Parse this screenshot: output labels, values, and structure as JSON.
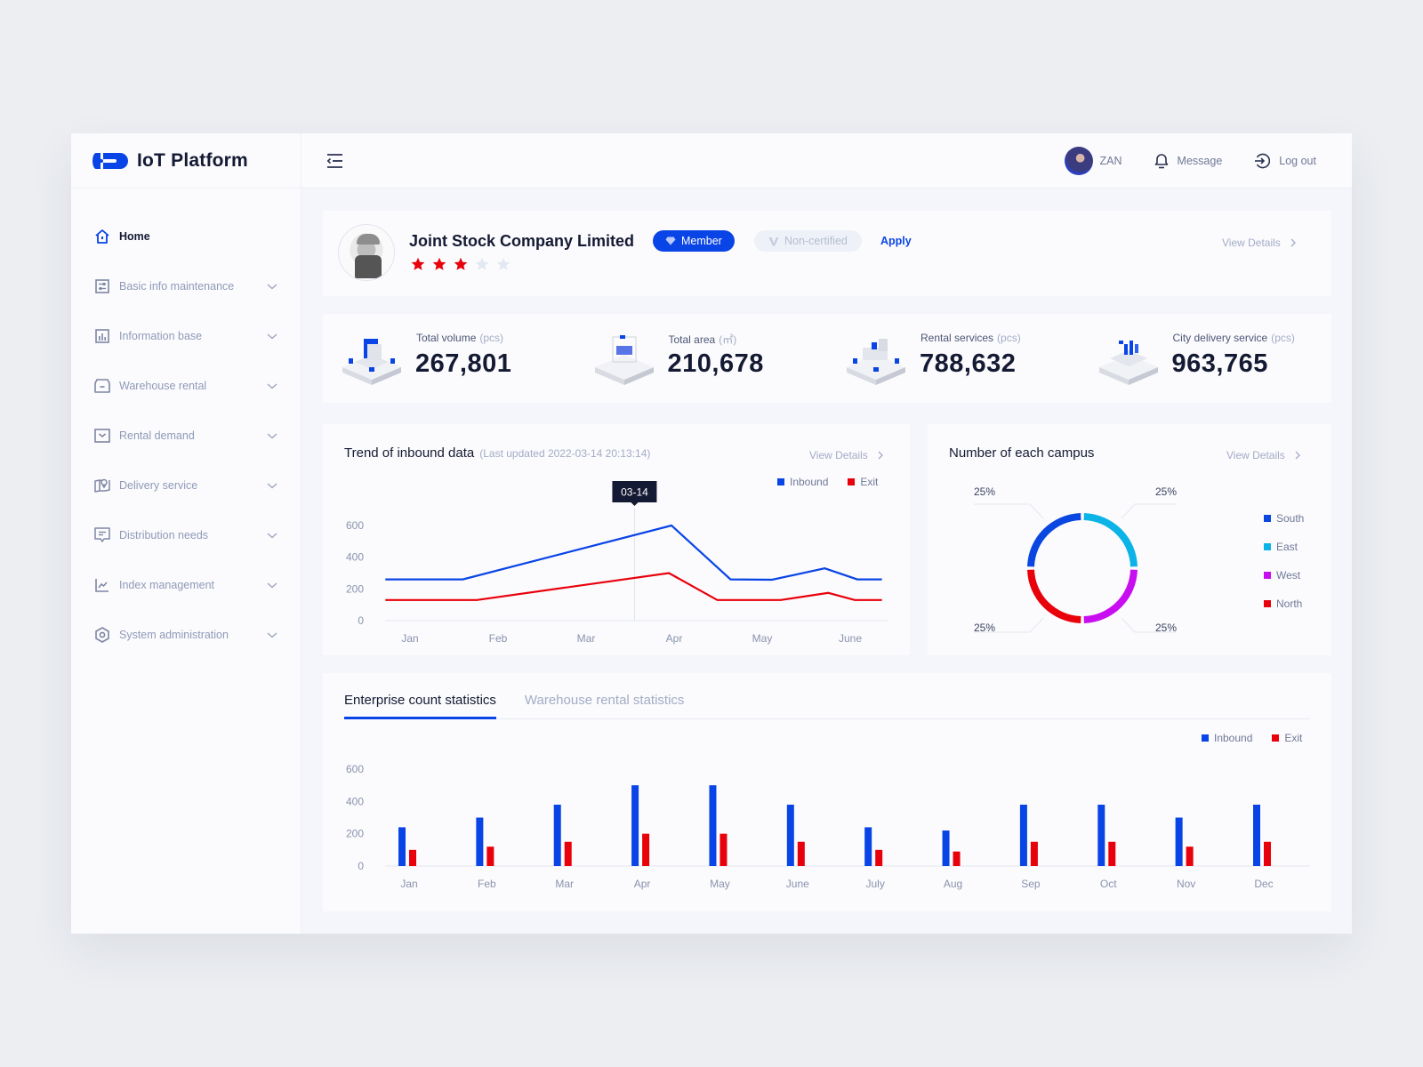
{
  "app": {
    "title": "IoT Platform"
  },
  "sidebar": {
    "items": [
      {
        "label": "Home",
        "icon": "home-icon",
        "active": true
      },
      {
        "label": "Basic info maintenance",
        "icon": "sliders-icon"
      },
      {
        "label": "Information base",
        "icon": "bar-chart-icon"
      },
      {
        "label": "Warehouse rental",
        "icon": "box-icon"
      },
      {
        "label": "Rental demand",
        "icon": "inbox-icon"
      },
      {
        "label": "Delivery service",
        "icon": "map-pin-icon"
      },
      {
        "label": "Distribution needs",
        "icon": "message-icon"
      },
      {
        "label": "Index management",
        "icon": "line-chart-icon"
      },
      {
        "label": "System administration",
        "icon": "settings-hexagon-icon"
      }
    ]
  },
  "header": {
    "user_name": "ZAN",
    "message_label": "Message",
    "logout_label": "Log out"
  },
  "company": {
    "name": "Joint Stock Company Limited",
    "member_label": "Member",
    "certification_label": "Non-certified",
    "apply_label": "Apply",
    "view_details_label": "View Details",
    "rating": 3,
    "rating_max": 5
  },
  "stats": [
    {
      "label": "Total volume",
      "unit": "(pcs)",
      "value": "267,801"
    },
    {
      "label": "Total area",
      "unit": "(㎡)",
      "value": "210,678"
    },
    {
      "label": "Rental services",
      "unit": "(pcs)",
      "value": "788,632"
    },
    {
      "label": "City delivery service",
      "unit": "(pcs)",
      "value": "963,765"
    }
  ],
  "colors": {
    "primary": "#0944e6",
    "inbound": "#0944e6",
    "exit": "#e8000b",
    "south": "#0a47e0",
    "east": "#0bb3e6",
    "west": "#c80ef0",
    "north": "#e8000b",
    "star_on": "#e8000b",
    "star_off": "#e4e8f2"
  },
  "trend": {
    "title": "Trend of inbound data",
    "subtitle": "(Last updated  2022-03-14 20:13:14)",
    "view_details_label": "View Details",
    "tooltip": "03-14"
  },
  "campus": {
    "title": "Number of each campus",
    "view_details_label": "View Details"
  },
  "bottom": {
    "tabs": [
      {
        "label": "Enterprise count statistics",
        "active": true
      },
      {
        "label": "Warehouse rental statistics",
        "active": false
      }
    ]
  },
  "chart_data": [
    {
      "type": "line",
      "title": "Trend of inbound data",
      "categories": [
        "Jan",
        "Feb",
        "Mar",
        "Apr",
        "May",
        "June"
      ],
      "yticks": [
        "0",
        "200",
        "400",
        "600"
      ],
      "ylim": [
        0,
        600
      ],
      "xlim": [
        -0.28,
        5.36
      ],
      "legend": [
        "Inbound",
        "Exit"
      ],
      "legend_position": "top-right",
      "tooltip_x": 2.55,
      "series": [
        {
          "name": "Inbound",
          "x": [
            -0.28,
            0.6,
            2.97,
            3.64,
            4.11,
            4.71,
            5.08,
            5.36
          ],
          "y": [
            260,
            260,
            600,
            260,
            258,
            330,
            260,
            260
          ]
        },
        {
          "name": "Exit",
          "x": [
            -0.28,
            0.76,
            2.94,
            3.49,
            4.21,
            4.75,
            5.05,
            5.36
          ],
          "y": [
            130,
            130,
            300,
            130,
            130,
            175,
            130,
            130
          ]
        }
      ]
    },
    {
      "type": "pie",
      "title": "Number of each campus",
      "donut": true,
      "labels": [
        "South",
        "East",
        "West",
        "North"
      ],
      "values": [
        25,
        25,
        25,
        25
      ],
      "value_labels": [
        "25%",
        "25%",
        "25%",
        "25%"
      ],
      "legend_position": "right"
    },
    {
      "type": "bar",
      "title": "Enterprise count statistics",
      "categories": [
        "Jan",
        "Feb",
        "Mar",
        "Apr",
        "May",
        "June",
        "July",
        "Aug",
        "Sep",
        "Oct",
        "Nov",
        "Dec"
      ],
      "yticks": [
        "0",
        "200",
        "400",
        "600"
      ],
      "ylim": [
        0,
        600
      ],
      "legend": [
        "Inbound",
        "Exit"
      ],
      "legend_position": "top-right",
      "series": [
        {
          "name": "Inbound",
          "values": [
            240,
            300,
            380,
            500,
            500,
            380,
            240,
            220,
            380,
            380,
            300,
            380
          ]
        },
        {
          "name": "Exit",
          "values": [
            100,
            120,
            150,
            200,
            200,
            150,
            100,
            90,
            150,
            150,
            120,
            150
          ]
        }
      ]
    }
  ]
}
